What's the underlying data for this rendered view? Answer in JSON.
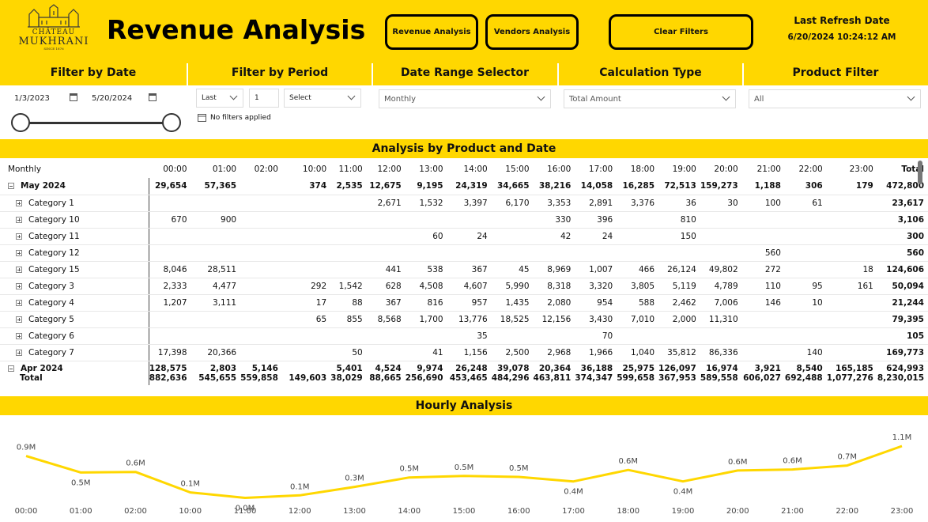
{
  "header": {
    "logo_line1": "CHÂTEAU",
    "logo_line2": "MUKHRANI",
    "logo_line3": "SINCE 1876",
    "title": "Revenue Analysis",
    "buttons": {
      "revenue": "Revenue Analysis",
      "vendors": "Vendors Analysis",
      "clear": "Clear Filters"
    },
    "refresh_label": "Last Refresh Date",
    "refresh_value": "6/20/2024 10:24:12 AM"
  },
  "filters": {
    "date": {
      "title": "Filter by Date",
      "start": "1/3/2023",
      "end": "5/20/2024"
    },
    "period": {
      "title": "Filter by Period",
      "mode": "Last",
      "count": "1",
      "unit": "Select",
      "status": "No filters applied"
    },
    "range": {
      "title": "Date Range Selector",
      "value": "Monthly"
    },
    "calc": {
      "title": "Calculation Type",
      "value": "Total Amount"
    },
    "product": {
      "title": "Product Filter",
      "value": "All"
    }
  },
  "matrix": {
    "title": "Analysis by Product and Date",
    "corner": "Monthly",
    "columns": [
      "00:00",
      "01:00",
      "02:00",
      "10:00",
      "11:00",
      "12:00",
      "13:00",
      "14:00",
      "15:00",
      "16:00",
      "17:00",
      "18:00",
      "19:00",
      "20:00",
      "21:00",
      "22:00",
      "23:00",
      "Total"
    ],
    "rows": [
      {
        "label": "May 2024",
        "level": 0,
        "values": [
          "29,654",
          "57,365",
          "",
          "374",
          "2,535",
          "12,675",
          "9,195",
          "24,319",
          "34,665",
          "38,216",
          "14,058",
          "16,285",
          "72,513",
          "159,273",
          "1,188",
          "306",
          "179",
          "472,800"
        ]
      },
      {
        "label": "Category 1",
        "level": 1,
        "values": [
          "",
          "",
          "",
          "",
          "",
          "2,671",
          "1,532",
          "3,397",
          "6,170",
          "3,353",
          "2,891",
          "3,376",
          "36",
          "30",
          "100",
          "61",
          "",
          "23,617"
        ]
      },
      {
        "label": "Category 10",
        "level": 1,
        "values": [
          "670",
          "900",
          "",
          "",
          "",
          "",
          "",
          "",
          "",
          "330",
          "396",
          "",
          "810",
          "",
          "",
          "",
          "",
          "3,106"
        ]
      },
      {
        "label": "Category 11",
        "level": 1,
        "values": [
          "",
          "",
          "",
          "",
          "",
          "",
          "60",
          "24",
          "",
          "42",
          "24",
          "",
          "150",
          "",
          "",
          "",
          "",
          "300"
        ]
      },
      {
        "label": "Category 12",
        "level": 1,
        "values": [
          "",
          "",
          "",
          "",
          "",
          "",
          "",
          "",
          "",
          "",
          "",
          "",
          "",
          "",
          "560",
          "",
          "",
          "560"
        ]
      },
      {
        "label": "Category 15",
        "level": 1,
        "values": [
          "8,046",
          "28,511",
          "",
          "",
          "",
          "441",
          "538",
          "367",
          "45",
          "8,969",
          "1,007",
          "466",
          "26,124",
          "49,802",
          "272",
          "",
          "18",
          "124,606"
        ]
      },
      {
        "label": "Category 3",
        "level": 1,
        "values": [
          "2,333",
          "4,477",
          "",
          "292",
          "1,542",
          "628",
          "4,508",
          "4,607",
          "5,990",
          "8,318",
          "3,320",
          "3,805",
          "5,119",
          "4,789",
          "110",
          "95",
          "161",
          "50,094"
        ]
      },
      {
        "label": "Category 4",
        "level": 1,
        "values": [
          "1,207",
          "3,111",
          "",
          "17",
          "88",
          "367",
          "816",
          "957",
          "1,435",
          "2,080",
          "954",
          "588",
          "2,462",
          "7,006",
          "146",
          "10",
          "",
          "21,244"
        ]
      },
      {
        "label": "Category 5",
        "level": 1,
        "values": [
          "",
          "",
          "",
          "65",
          "855",
          "8,568",
          "1,700",
          "13,776",
          "18,525",
          "12,156",
          "3,430",
          "7,010",
          "2,000",
          "11,310",
          "",
          "",
          "",
          "79,395"
        ]
      },
      {
        "label": "Category 6",
        "level": 1,
        "values": [
          "",
          "",
          "",
          "",
          "",
          "",
          "",
          "35",
          "",
          "",
          "70",
          "",
          "",
          "",
          "",
          "",
          "",
          "105"
        ]
      },
      {
        "label": "Category 7",
        "level": 1,
        "values": [
          "17,398",
          "20,366",
          "",
          "",
          "50",
          "",
          "41",
          "1,156",
          "2,500",
          "2,968",
          "1,966",
          "1,040",
          "35,812",
          "86,336",
          "",
          "140",
          "",
          "169,773"
        ]
      },
      {
        "label": "Apr 2024",
        "level": 0,
        "values": [
          "128,575",
          "2,803",
          "5,146",
          "",
          "5,401",
          "4,524",
          "9,974",
          "26,248",
          "39,078",
          "20,364",
          "36,188",
          "25,975",
          "126,097",
          "16,974",
          "3,921",
          "8,540",
          "165,185",
          "624,993"
        ]
      }
    ],
    "total": {
      "label": "Total",
      "values": [
        "882,636",
        "545,655",
        "559,858",
        "149,603",
        "38,029",
        "88,665",
        "256,690",
        "453,465",
        "484,296",
        "463,811",
        "374,347",
        "599,658",
        "367,953",
        "589,558",
        "606,027",
        "692,488",
        "1,077,276",
        "8,230,015"
      ]
    }
  },
  "hourly": {
    "title": "Hourly Analysis"
  },
  "chart_data": {
    "type": "line",
    "title": "Hourly Analysis",
    "categories": [
      "00:00",
      "01:00",
      "02:00",
      "10:00",
      "11:00",
      "12:00",
      "13:00",
      "14:00",
      "15:00",
      "16:00",
      "17:00",
      "18:00",
      "19:00",
      "20:00",
      "21:00",
      "22:00",
      "23:00"
    ],
    "values": [
      0.88,
      0.55,
      0.56,
      0.15,
      0.04,
      0.09,
      0.26,
      0.45,
      0.48,
      0.46,
      0.37,
      0.6,
      0.37,
      0.59,
      0.61,
      0.69,
      1.08
    ],
    "labels": [
      "0.9M",
      "0.5M",
      "0.6M",
      "0.1M",
      "0.0M",
      "0.1M",
      "0.3M",
      "0.5M",
      "0.5M",
      "0.5M",
      "0.4M",
      "0.6M",
      "0.4M",
      "0.6M",
      "0.6M",
      "0.7M",
      "1.1M"
    ],
    "label_position": [
      "above",
      "below",
      "above",
      "above",
      "below",
      "above",
      "above",
      "above",
      "above",
      "above",
      "below",
      "above",
      "below",
      "above",
      "above",
      "above",
      "above"
    ],
    "color": "#FFD700",
    "grid": false
  },
  "colors": {
    "accent": "#FFD700",
    "text": "#111111"
  }
}
